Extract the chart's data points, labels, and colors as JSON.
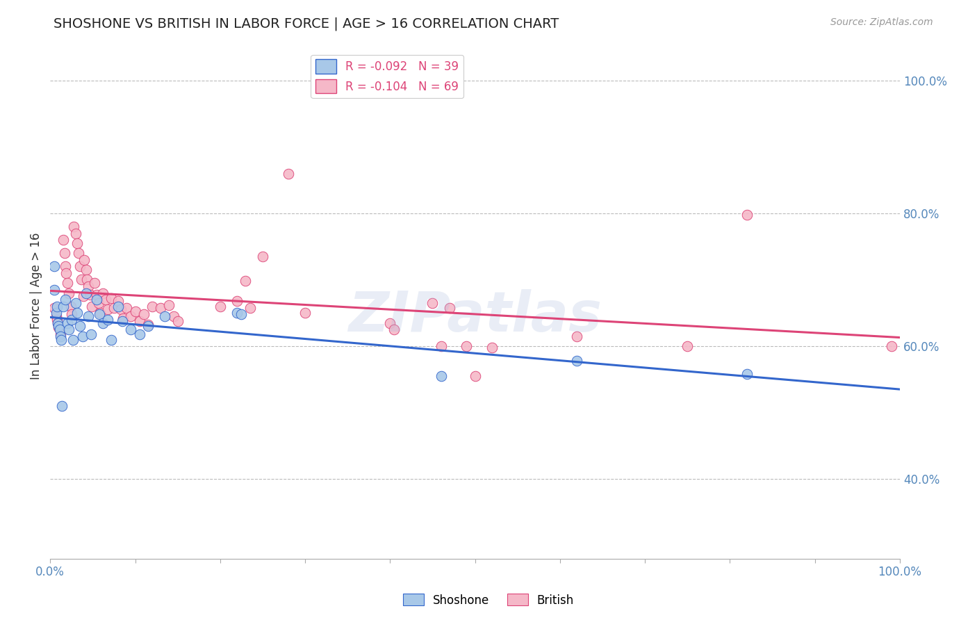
{
  "title": "SHOSHONE VS BRITISH IN LABOR FORCE | AGE > 16 CORRELATION CHART",
  "source_text": "Source: ZipAtlas.com",
  "ylabel": "In Labor Force | Age > 16",
  "xlim": [
    0.0,
    1.0
  ],
  "ylim": [
    0.28,
    1.04
  ],
  "y_tick_positions_right": [
    0.4,
    0.6,
    0.8,
    1.0
  ],
  "shoshone_R": -0.092,
  "shoshone_N": 39,
  "british_R": -0.104,
  "british_N": 69,
  "watermark": "ZIPatlas",
  "shoshone_color": "#a8c8e8",
  "british_color": "#f5b8c8",
  "shoshone_line_color": "#3366cc",
  "british_line_color": "#dd4477",
  "background_color": "#ffffff",
  "grid_color": "#bbbbbb",
  "shoshone_x": [
    0.005,
    0.007,
    0.008,
    0.009,
    0.01,
    0.011,
    0.012,
    0.013,
    0.015,
    0.018,
    0.02,
    0.022,
    0.025,
    0.027,
    0.03,
    0.032,
    0.035,
    0.038,
    0.042,
    0.045,
    0.048,
    0.055,
    0.058,
    0.062,
    0.068,
    0.072,
    0.08,
    0.085,
    0.095,
    0.105,
    0.115,
    0.135,
    0.22,
    0.225,
    0.46,
    0.62,
    0.82,
    0.005,
    0.014
  ],
  "shoshone_y": [
    0.685,
    0.65,
    0.66,
    0.635,
    0.63,
    0.625,
    0.615,
    0.61,
    0.66,
    0.67,
    0.635,
    0.625,
    0.64,
    0.61,
    0.665,
    0.65,
    0.63,
    0.615,
    0.68,
    0.645,
    0.618,
    0.67,
    0.648,
    0.635,
    0.64,
    0.61,
    0.66,
    0.638,
    0.625,
    0.618,
    0.63,
    0.645,
    0.65,
    0.648,
    0.555,
    0.578,
    0.558,
    0.72,
    0.51
  ],
  "british_x": [
    0.005,
    0.007,
    0.008,
    0.009,
    0.01,
    0.012,
    0.015,
    0.017,
    0.018,
    0.019,
    0.02,
    0.022,
    0.024,
    0.025,
    0.028,
    0.03,
    0.032,
    0.033,
    0.035,
    0.037,
    0.039,
    0.04,
    0.042,
    0.043,
    0.045,
    0.047,
    0.049,
    0.052,
    0.055,
    0.057,
    0.059,
    0.062,
    0.065,
    0.068,
    0.072,
    0.075,
    0.08,
    0.083,
    0.086,
    0.09,
    0.095,
    0.1,
    0.105,
    0.11,
    0.115,
    0.12,
    0.13,
    0.14,
    0.145,
    0.15,
    0.2,
    0.22,
    0.23,
    0.235,
    0.25,
    0.28,
    0.3,
    0.4,
    0.405,
    0.45,
    0.46,
    0.47,
    0.49,
    0.5,
    0.52,
    0.62,
    0.75,
    0.82,
    0.99
  ],
  "british_y": [
    0.658,
    0.645,
    0.64,
    0.635,
    0.628,
    0.618,
    0.76,
    0.74,
    0.72,
    0.71,
    0.695,
    0.68,
    0.66,
    0.648,
    0.78,
    0.77,
    0.755,
    0.74,
    0.72,
    0.7,
    0.675,
    0.73,
    0.715,
    0.7,
    0.69,
    0.678,
    0.66,
    0.695,
    0.678,
    0.665,
    0.65,
    0.68,
    0.67,
    0.655,
    0.672,
    0.658,
    0.668,
    0.655,
    0.642,
    0.658,
    0.645,
    0.652,
    0.638,
    0.648,
    0.632,
    0.66,
    0.658,
    0.662,
    0.645,
    0.638,
    0.66,
    0.668,
    0.698,
    0.658,
    0.735,
    0.86,
    0.65,
    0.635,
    0.625,
    0.665,
    0.6,
    0.658,
    0.6,
    0.555,
    0.598,
    0.615,
    0.6,
    0.798,
    0.6
  ]
}
